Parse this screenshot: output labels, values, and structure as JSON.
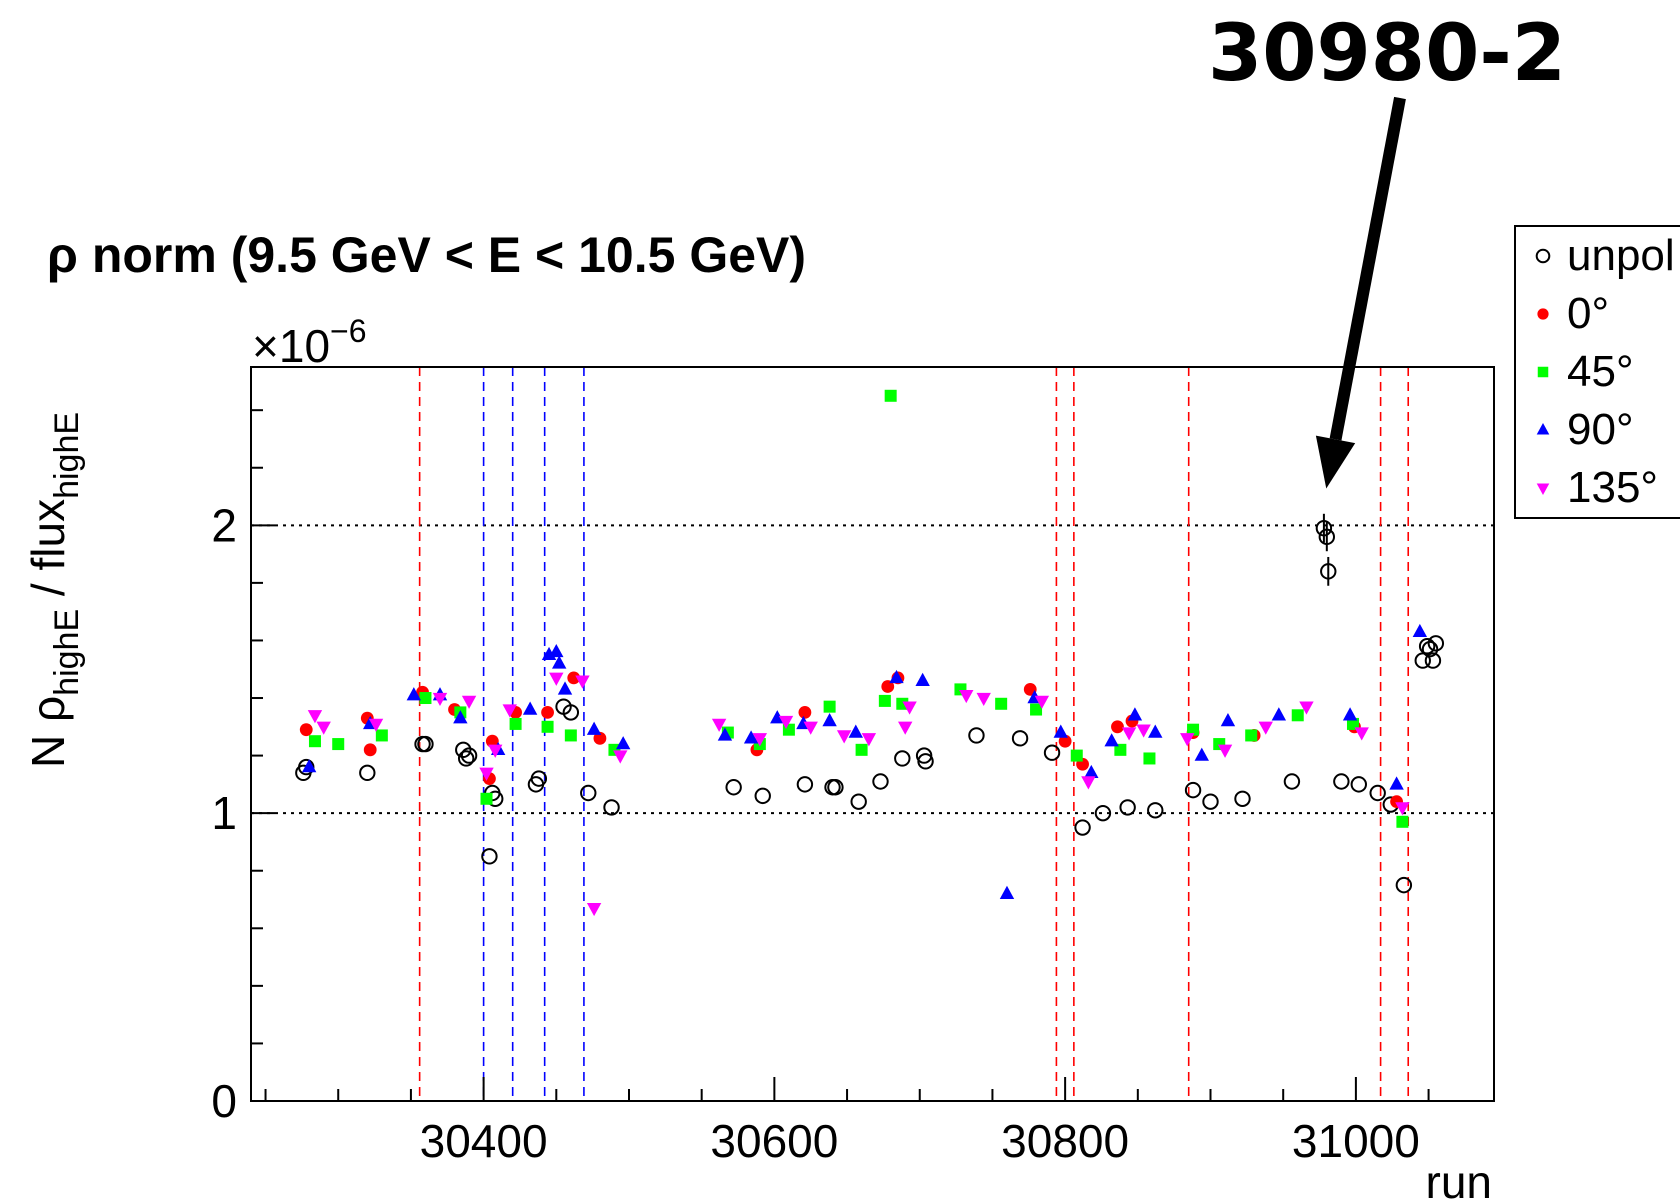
{
  "chart_data": {
    "type": "scatter",
    "title": "ρ norm (9.5 GeV < E < 10.5 GeV)",
    "xlabel": "run",
    "ylabel": {
      "prefix": "N ρ",
      "sub1": "highE",
      "mid": " / flux",
      "sub2": "highE"
    },
    "y_multiplier": "×10",
    "y_multiplier_exp": "−6",
    "xlim": [
      30240,
      31095
    ],
    "ylim": [
      0,
      2.55
    ],
    "x_ticks": [
      30400,
      30600,
      30800,
      31000
    ],
    "x_tick_labels": [
      "30400",
      "30600",
      "30800",
      "31000"
    ],
    "y_ticks": [
      0,
      1,
      2
    ],
    "y_tick_labels": [
      "0",
      "1",
      "2"
    ],
    "x_minor_step": 50,
    "y_minor_step": 0.2,
    "ref_lines_y": [
      1,
      2
    ],
    "red_dashed_runs": [
      30356,
      30794,
      30806,
      30885,
      31017,
      31036
    ],
    "blue_dashed_runs": [
      30400,
      30420,
      30442,
      30469
    ],
    "legend_position": "top-right",
    "annotation": {
      "text": "30980-2",
      "x": 30981,
      "y": 2.1
    },
    "series": [
      {
        "name": "unpol",
        "marker": "circle-open",
        "color": "#000000",
        "points": [
          [
            30276,
            1.14
          ],
          [
            30278,
            1.16
          ],
          [
            30320,
            1.14
          ],
          [
            30358,
            1.24
          ],
          [
            30360,
            1.24
          ],
          [
            30386,
            1.22
          ],
          [
            30388,
            1.19
          ],
          [
            30390,
            1.2
          ],
          [
            30404,
            0.85
          ],
          [
            30406,
            1.07
          ],
          [
            30408,
            1.05
          ],
          [
            30436,
            1.1
          ],
          [
            30438,
            1.12
          ],
          [
            30455,
            1.37
          ],
          [
            30460,
            1.35
          ],
          [
            30472,
            1.07
          ],
          [
            30488,
            1.02
          ],
          [
            30572,
            1.09
          ],
          [
            30592,
            1.06
          ],
          [
            30621,
            1.1
          ],
          [
            30640,
            1.09
          ],
          [
            30642,
            1.09
          ],
          [
            30658,
            1.04
          ],
          [
            30673,
            1.11
          ],
          [
            30688,
            1.19
          ],
          [
            30703,
            1.2
          ],
          [
            30704,
            1.18
          ],
          [
            30739,
            1.27
          ],
          [
            30769,
            1.26
          ],
          [
            30791,
            1.21
          ],
          [
            30812,
            0.95
          ],
          [
            30826,
            1.0
          ],
          [
            30843,
            1.02
          ],
          [
            30862,
            1.01
          ],
          [
            30888,
            1.08
          ],
          [
            30900,
            1.04
          ],
          [
            30922,
            1.05
          ],
          [
            30956,
            1.11
          ],
          [
            30978,
            1.99
          ],
          [
            30980,
            1.96
          ],
          [
            30981,
            1.84
          ],
          [
            30990,
            1.11
          ],
          [
            31002,
            1.1
          ],
          [
            31015,
            1.07
          ],
          [
            31024,
            1.03
          ],
          [
            31033,
            0.75
          ],
          [
            31046,
            1.53
          ],
          [
            31049,
            1.58
          ],
          [
            31051,
            1.57
          ],
          [
            31053,
            1.53
          ],
          [
            31055,
            1.59
          ]
        ]
      },
      {
        "name": "0°",
        "marker": "circle-filled",
        "color": "#ff0000",
        "points": [
          [
            30278,
            1.29
          ],
          [
            30320,
            1.33
          ],
          [
            30322,
            1.22
          ],
          [
            30358,
            1.42
          ],
          [
            30380,
            1.36
          ],
          [
            30404,
            1.12
          ],
          [
            30406,
            1.25
          ],
          [
            30422,
            1.35
          ],
          [
            30444,
            1.35
          ],
          [
            30462,
            1.47
          ],
          [
            30480,
            1.26
          ],
          [
            30588,
            1.22
          ],
          [
            30621,
            1.35
          ],
          [
            30678,
            1.44
          ],
          [
            30685,
            1.47
          ],
          [
            30776,
            1.43
          ],
          [
            30800,
            1.25
          ],
          [
            30812,
            1.17
          ],
          [
            30836,
            1.3
          ],
          [
            30846,
            1.32
          ],
          [
            30888,
            1.28
          ],
          [
            30930,
            1.27
          ],
          [
            30999,
            1.3
          ],
          [
            31028,
            1.04
          ]
        ]
      },
      {
        "name": "45°",
        "marker": "square-filled",
        "color": "#00ff00",
        "points": [
          [
            30284,
            1.25
          ],
          [
            30300,
            1.24
          ],
          [
            30330,
            1.27
          ],
          [
            30360,
            1.4
          ],
          [
            30384,
            1.35
          ],
          [
            30402,
            1.05
          ],
          [
            30422,
            1.31
          ],
          [
            30444,
            1.3
          ],
          [
            30460,
            1.27
          ],
          [
            30490,
            1.22
          ],
          [
            30568,
            1.28
          ],
          [
            30590,
            1.24
          ],
          [
            30610,
            1.29
          ],
          [
            30638,
            1.37
          ],
          [
            30660,
            1.22
          ],
          [
            30676,
            1.39
          ],
          [
            30688,
            1.38
          ],
          [
            30728,
            1.43
          ],
          [
            30756,
            1.38
          ],
          [
            30780,
            1.36
          ],
          [
            30808,
            1.2
          ],
          [
            30838,
            1.22
          ],
          [
            30858,
            1.19
          ],
          [
            30888,
            1.29
          ],
          [
            30906,
            1.24
          ],
          [
            30928,
            1.27
          ],
          [
            30960,
            1.34
          ],
          [
            30998,
            1.31
          ],
          [
            31032,
            0.97
          ],
          [
            30680,
            2.45
          ]
        ]
      },
      {
        "name": "90°",
        "marker": "triangle-up",
        "color": "#0000ff",
        "points": [
          [
            30280,
            1.16
          ],
          [
            30322,
            1.31
          ],
          [
            30352,
            1.41
          ],
          [
            30370,
            1.41
          ],
          [
            30384,
            1.33
          ],
          [
            30410,
            1.22
          ],
          [
            30432,
            1.36
          ],
          [
            30445,
            1.55
          ],
          [
            30450,
            1.56
          ],
          [
            30452,
            1.52
          ],
          [
            30456,
            1.43
          ],
          [
            30476,
            1.29
          ],
          [
            30496,
            1.24
          ],
          [
            30566,
            1.27
          ],
          [
            30584,
            1.26
          ],
          [
            30602,
            1.33
          ],
          [
            30620,
            1.31
          ],
          [
            30638,
            1.32
          ],
          [
            30656,
            1.28
          ],
          [
            30684,
            1.47
          ],
          [
            30702,
            1.46
          ],
          [
            30760,
            0.72
          ],
          [
            30779,
            1.4
          ],
          [
            30797,
            1.28
          ],
          [
            30818,
            1.14
          ],
          [
            30832,
            1.25
          ],
          [
            30848,
            1.34
          ],
          [
            30862,
            1.28
          ],
          [
            30894,
            1.2
          ],
          [
            30912,
            1.32
          ],
          [
            30947,
            1.34
          ],
          [
            30996,
            1.34
          ],
          [
            31028,
            1.1
          ],
          [
            31044,
            1.63
          ]
        ]
      },
      {
        "name": "135°",
        "marker": "triangle-down",
        "color": "#ff00ff",
        "points": [
          [
            30284,
            1.34
          ],
          [
            30290,
            1.3
          ],
          [
            30326,
            1.31
          ],
          [
            30370,
            1.4
          ],
          [
            30390,
            1.39
          ],
          [
            30402,
            1.14
          ],
          [
            30408,
            1.22
          ],
          [
            30418,
            1.36
          ],
          [
            30450,
            1.47
          ],
          [
            30468,
            1.46
          ],
          [
            30476,
            0.67
          ],
          [
            30494,
            1.2
          ],
          [
            30562,
            1.31
          ],
          [
            30590,
            1.26
          ],
          [
            30608,
            1.32
          ],
          [
            30625,
            1.3
          ],
          [
            30648,
            1.27
          ],
          [
            30665,
            1.26
          ],
          [
            30690,
            1.3
          ],
          [
            30693,
            1.37
          ],
          [
            30732,
            1.41
          ],
          [
            30744,
            1.4
          ],
          [
            30784,
            1.39
          ],
          [
            30816,
            1.11
          ],
          [
            30844,
            1.28
          ],
          [
            30854,
            1.29
          ],
          [
            30884,
            1.26
          ],
          [
            30910,
            1.22
          ],
          [
            30938,
            1.3
          ],
          [
            30966,
            1.37
          ],
          [
            31004,
            1.28
          ],
          [
            31032,
            1.02
          ]
        ]
      }
    ]
  }
}
